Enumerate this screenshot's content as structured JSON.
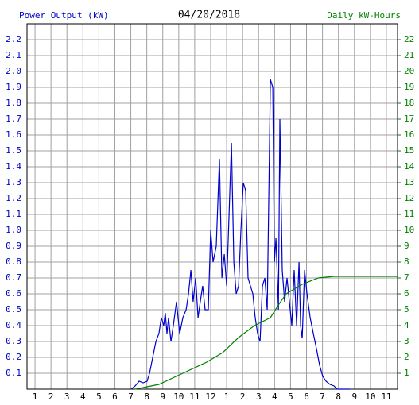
{
  "chart_data": {
    "type": "line",
    "title": "04/20/2018",
    "y_label": "Power Output (kW)",
    "y2_label": "Daily kW-Hours",
    "xlim": [
      0.5,
      23.7
    ],
    "xticks": [
      {
        "value": 1,
        "label": "1"
      },
      {
        "value": 2,
        "label": "2"
      },
      {
        "value": 3,
        "label": "3"
      },
      {
        "value": 4,
        "label": "4"
      },
      {
        "value": 5,
        "label": "5"
      },
      {
        "value": 6,
        "label": "6"
      },
      {
        "value": 7,
        "label": "7"
      },
      {
        "value": 8,
        "label": "8"
      },
      {
        "value": 9,
        "label": "9"
      },
      {
        "value": 10,
        "label": "10"
      },
      {
        "value": 11,
        "label": "11"
      },
      {
        "value": 12,
        "label": "12"
      },
      {
        "value": 13,
        "label": "1"
      },
      {
        "value": 14,
        "label": "2"
      },
      {
        "value": 15,
        "label": "3"
      },
      {
        "value": 16,
        "label": "4"
      },
      {
        "value": 17,
        "label": "5"
      },
      {
        "value": 18,
        "label": "6"
      },
      {
        "value": 19,
        "label": "7"
      },
      {
        "value": 20,
        "label": "8"
      },
      {
        "value": 21,
        "label": "9"
      },
      {
        "value": 22,
        "label": "10"
      },
      {
        "value": 23,
        "label": "11"
      }
    ],
    "ylim": [
      0,
      2.3
    ],
    "yticks": [
      0.1,
      0.2,
      0.3,
      0.4,
      0.5,
      0.6,
      0.7,
      0.8,
      0.9,
      {
        "value": 1,
        "label": "1.0"
      },
      1.1,
      1.2,
      1.3,
      1.4,
      1.5,
      1.6,
      1.7,
      1.8,
      1.9,
      {
        "value": 2,
        "label": "2.0"
      },
      2.1,
      2.2
    ],
    "y2lim": [
      0,
      23
    ],
    "y2ticks": [
      1,
      2,
      3,
      4,
      5,
      6,
      7,
      8,
      9,
      10,
      11,
      12,
      13,
      14,
      15,
      16,
      17,
      18,
      19,
      20,
      21,
      22
    ],
    "grid": true,
    "series": [
      {
        "color": "#0000cc",
        "x": [
          7.02,
          7.27,
          7.52,
          7.77,
          8.02,
          8.17,
          8.37,
          8.57,
          8.76,
          8.91,
          9.06,
          9.16,
          9.26,
          9.36,
          9.51,
          9.66,
          9.86,
          10.06,
          10.26,
          10.46,
          10.61,
          10.76,
          10.9,
          11.06,
          11.21,
          11.35,
          11.5,
          11.65,
          11.85,
          12.0,
          12.15,
          12.35,
          12.55,
          12.7,
          12.85,
          13.0,
          13.15,
          13.3,
          13.45,
          13.6,
          13.75,
          13.89,
          14.04,
          14.19,
          14.34,
          14.49,
          14.64,
          14.79,
          14.94,
          15.09,
          15.24,
          15.39,
          15.54,
          15.74,
          15.89,
          15.99,
          16.09,
          16.24,
          16.33,
          16.48,
          16.63,
          16.78,
          16.93,
          17.08,
          17.23,
          17.38,
          17.53,
          17.63,
          17.73,
          17.88,
          18.03,
          18.23,
          18.43,
          18.63,
          18.82,
          19.02,
          19.22,
          19.47,
          19.72,
          19.92,
          20.72
        ],
        "values": [
          0,
          0.02,
          0.05,
          0.04,
          0.05,
          0.1,
          0.2,
          0.3,
          0.35,
          0.45,
          0.4,
          0.48,
          0.35,
          0.45,
          0.3,
          0.4,
          0.55,
          0.35,
          0.45,
          0.5,
          0.6,
          0.75,
          0.55,
          0.7,
          0.45,
          0.55,
          0.65,
          0.5,
          0.5,
          1.0,
          0.8,
          0.9,
          1.45,
          0.7,
          0.85,
          0.65,
          1.1,
          1.55,
          0.8,
          0.6,
          0.65,
          1.0,
          1.3,
          1.25,
          0.7,
          0.65,
          0.6,
          0.45,
          0.35,
          0.3,
          0.65,
          0.7,
          0.5,
          1.95,
          1.9,
          0.8,
          0.95,
          0.5,
          1.7,
          0.75,
          0.55,
          0.7,
          0.55,
          0.4,
          0.75,
          0.4,
          0.8,
          0.4,
          0.32,
          0.75,
          0.6,
          0.45,
          0.35,
          0.25,
          0.15,
          0.08,
          0.05,
          0.03,
          0.02,
          0,
          0
        ]
      },
      {
        "color": "#008000",
        "axis": "y2",
        "x": [
          7.27,
          8.76,
          10.26,
          11.75,
          12.75,
          13.75,
          14.74,
          15.74,
          16.24,
          16.73,
          17.73,
          18.73,
          19.72,
          20.72,
          23.7
        ],
        "values": [
          0,
          0.3,
          1.0,
          1.7,
          2.3,
          3.25,
          4.0,
          4.5,
          5.3,
          6.0,
          6.6,
          7.0,
          7.1,
          7.1,
          7.1
        ]
      }
    ]
  }
}
